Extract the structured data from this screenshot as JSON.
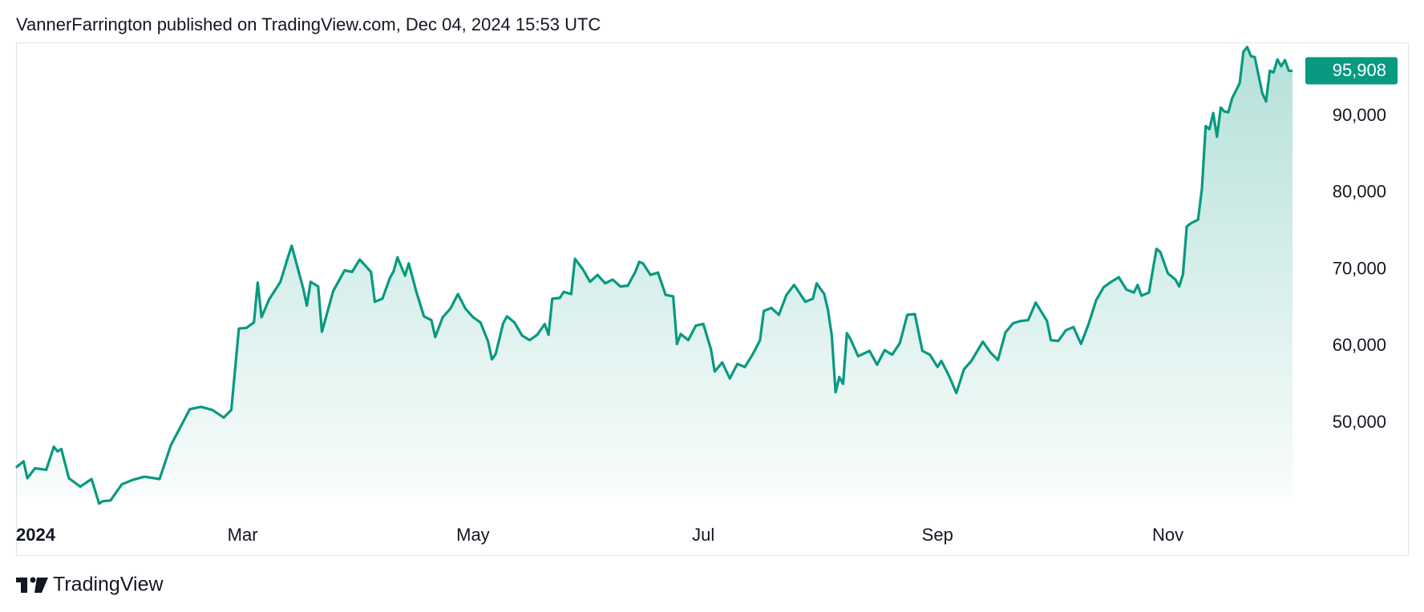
{
  "header": "VannerFarrington published on TradingView.com, Dec 04, 2024 15:53 UTC",
  "footer": "TradingView",
  "chart_data": {
    "type": "area",
    "color": "#089981",
    "x": [
      0,
      2,
      3,
      5,
      8,
      10,
      11,
      12,
      14,
      17,
      20,
      22,
      23,
      25,
      28,
      31,
      34,
      38,
      41,
      44,
      46,
      49,
      52,
      55,
      57,
      59,
      61,
      63,
      64,
      65,
      67,
      70,
      72,
      73,
      76,
      77,
      78,
      80,
      81,
      84,
      87,
      89,
      91,
      94,
      95,
      97,
      99,
      100,
      101,
      103,
      104,
      106,
      108,
      110,
      111,
      113,
      115,
      117,
      119,
      121,
      123,
      125,
      126,
      127,
      129,
      130,
      132,
      134,
      136,
      138,
      140,
      141,
      142,
      144,
      145,
      147,
      148,
      150,
      152,
      154,
      156,
      158,
      160,
      162,
      164,
      165,
      166,
      168,
      170,
      172,
      174,
      175,
      176,
      178,
      180,
      182,
      184,
      185,
      187,
      189,
      191,
      193,
      195,
      197,
      198,
      200,
      202,
      204,
      206,
      207,
      209,
      211,
      212,
      214,
      215,
      216,
      217,
      218,
      219,
      220,
      221,
      223,
      226,
      228,
      230,
      232,
      234,
      236,
      238,
      240,
      242,
      244,
      245,
      247,
      249,
      251,
      253,
      256,
      258,
      260,
      262,
      264,
      266,
      268,
      270,
      273,
      274,
      276,
      278,
      280,
      282,
      284,
      286,
      288,
      290,
      292,
      294,
      296,
      297,
      298,
      300,
      301,
      302,
      303,
      305,
      307,
      308,
      309,
      310,
      311,
      313,
      314,
      315,
      316,
      317,
      318,
      319,
      320,
      321,
      322,
      324,
      325,
      326,
      327,
      328,
      330,
      331,
      332,
      333,
      334,
      335,
      336,
      337,
      338
    ],
    "values": [
      44200,
      45000,
      42800,
      44100,
      43900,
      46900,
      46300,
      46600,
      42800,
      41700,
      42700,
      39500,
      39800,
      39900,
      42000,
      42600,
      43000,
      42700,
      47100,
      49900,
      51800,
      52100,
      51700,
      50700,
      51700,
      62300,
      62400,
      63100,
      68300,
      63800,
      66100,
      68400,
      71600,
      73100,
      67600,
      65300,
      68400,
      67800,
      61900,
      67200,
      69900,
      69700,
      71300,
      69700,
      65800,
      66200,
      68900,
      69800,
      71600,
      69200,
      70800,
      67100,
      63900,
      63400,
      61200,
      63800,
      64900,
      66800,
      64900,
      63800,
      63100,
      60600,
      58300,
      59000,
      63000,
      63900,
      63100,
      61400,
      60800,
      61500,
      62900,
      61500,
      66200,
      66300,
      67100,
      66800,
      71400,
      70100,
      68400,
      69300,
      68200,
      68700,
      67800,
      67900,
      69700,
      71000,
      70800,
      69300,
      69600,
      66700,
      66500,
      60300,
      61600,
      60800,
      62700,
      62900,
      59600,
      56700,
      57900,
      55800,
      57700,
      57300,
      58900,
      60800,
      64600,
      65000,
      64100,
      66700,
      68000,
      67300,
      65800,
      66200,
      68200,
      66800,
      64700,
      61400,
      54000,
      56000,
      55100,
      61700,
      60900,
      58700,
      59400,
      57600,
      59500,
      58900,
      60400,
      64100,
      64200,
      59400,
      58900,
      57300,
      58100,
      56200,
      53900,
      57000,
      58100,
      60600,
      59200,
      58200,
      61800,
      63000,
      63300,
      63400,
      65700,
      63300,
      60800,
      60700,
      62100,
      62500,
      60300,
      62900,
      66000,
      67700,
      68400,
      69000,
      67400,
      67000,
      68000,
      66600,
      67000,
      69900,
      72700,
      72300,
      69500,
      68700,
      67800,
      69400,
      75600,
      76000,
      76500,
      80500,
      88700,
      88300,
      90400,
      87300,
      91100,
      90600,
      90500,
      92300,
      94300,
      98400,
      99000,
      97800,
      97700,
      93000,
      91900,
      95900,
      95700,
      97400,
      96500,
      97300,
      95900,
      95908
    ],
    "xlim": [
      0,
      338
    ],
    "xticks": [
      {
        "value": 0,
        "label": "2024"
      },
      {
        "value": 60,
        "label": "Mar"
      },
      {
        "value": 121,
        "label": "May"
      },
      {
        "value": 182,
        "label": "Jul"
      },
      {
        "value": 244,
        "label": "Sep"
      },
      {
        "value": 305,
        "label": "Nov"
      }
    ],
    "ylim": [
      40400,
      99600
    ],
    "yticks": [
      {
        "value": 50000,
        "label": "50,000"
      },
      {
        "value": 60000,
        "label": "60,000"
      },
      {
        "value": 70000,
        "label": "70,000"
      },
      {
        "value": 80000,
        "label": "80,000"
      },
      {
        "value": 90000,
        "label": "90,000"
      }
    ],
    "last_value": 95908,
    "last_value_label": "95,908",
    "grid": false
  }
}
